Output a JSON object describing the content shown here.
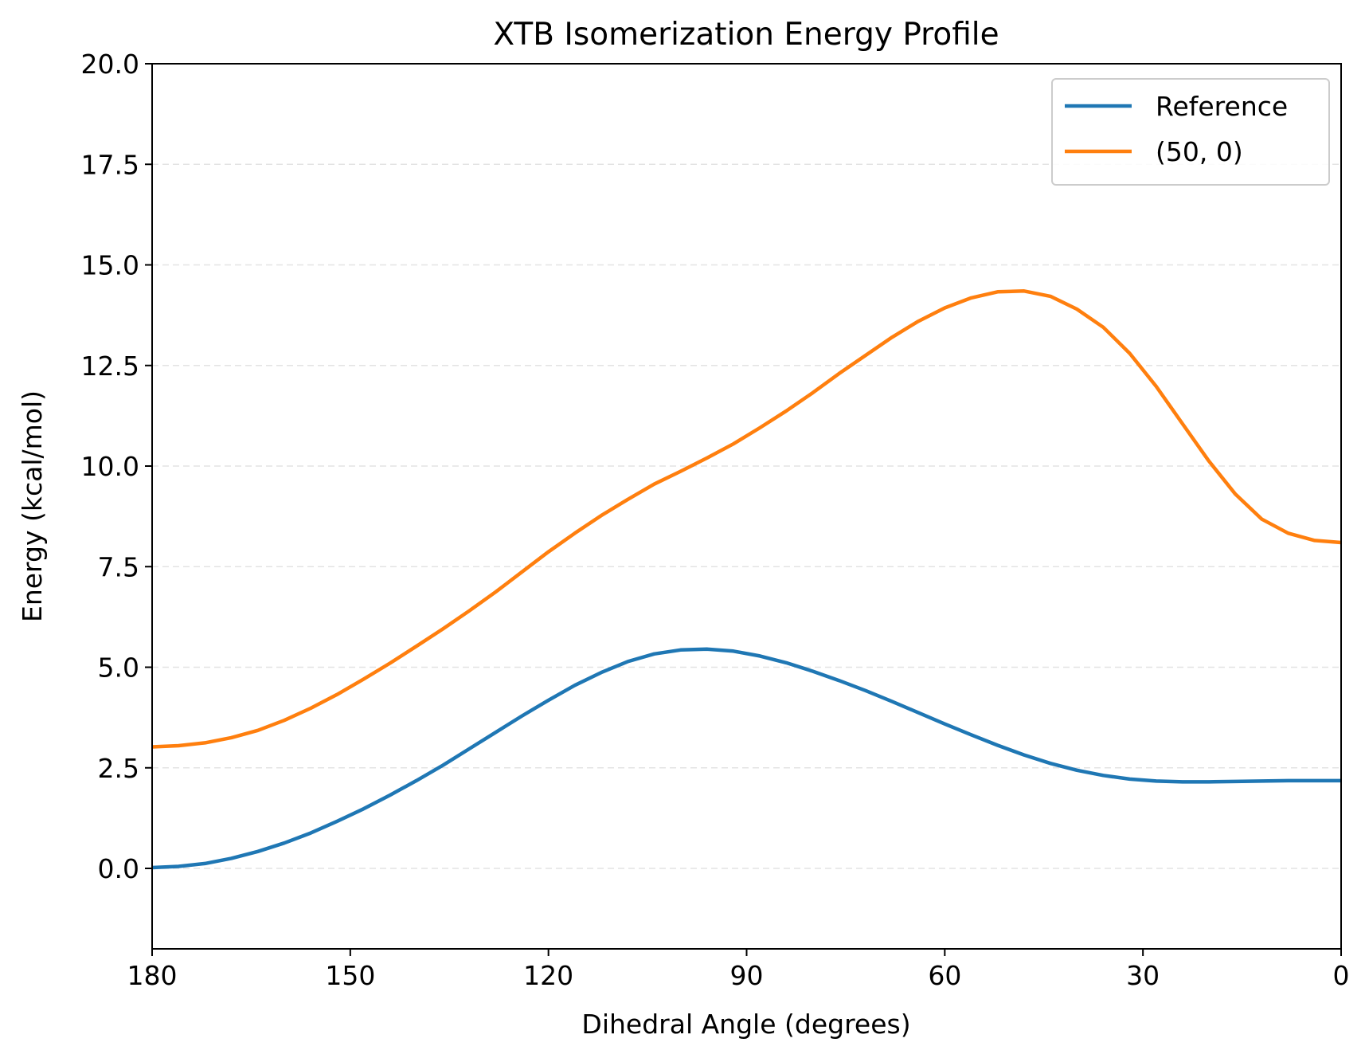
{
  "chart_data": {
    "type": "line",
    "title": "XTB Isomerization Energy Profile",
    "xlabel": "Dihedral Angle (degrees)",
    "ylabel": "Energy (kcal/mol)",
    "xlim": [
      180,
      0
    ],
    "ylim": [
      -2.0,
      20.0
    ],
    "x_ticks": [
      180,
      150,
      120,
      90,
      60,
      30,
      0
    ],
    "x_tick_labels": [
      "180",
      "150",
      "120",
      "90",
      "60",
      "30",
      "0"
    ],
    "y_ticks": [
      0.0,
      2.5,
      5.0,
      7.5,
      10.0,
      12.5,
      15.0,
      17.5,
      20.0
    ],
    "y_tick_labels": [
      "0.0",
      "2.5",
      "5.0",
      "7.5",
      "10.0",
      "12.5",
      "15.0",
      "17.5",
      "20.0"
    ],
    "grid": "horizontal dashed",
    "legend_position": "top-right",
    "x": [
      180,
      176,
      172,
      168,
      164,
      160,
      156,
      152,
      148,
      144,
      140,
      136,
      132,
      128,
      124,
      120,
      116,
      112,
      108,
      104,
      100,
      96,
      92,
      88,
      84,
      80,
      76,
      72,
      68,
      64,
      60,
      56,
      52,
      48,
      44,
      40,
      36,
      32,
      28,
      24,
      20,
      16,
      12,
      8,
      4,
      0
    ],
    "series": [
      {
        "name": "Reference",
        "color": "#1f77b4",
        "values": [
          0.02,
          0.05,
          0.12,
          0.25,
          0.42,
          0.63,
          0.88,
          1.17,
          1.48,
          1.82,
          2.18,
          2.56,
          2.97,
          3.38,
          3.79,
          4.18,
          4.55,
          4.87,
          5.14,
          5.33,
          5.43,
          5.45,
          5.4,
          5.28,
          5.11,
          4.9,
          4.67,
          4.42,
          4.15,
          3.87,
          3.59,
          3.32,
          3.06,
          2.82,
          2.61,
          2.44,
          2.31,
          2.22,
          2.17,
          2.15,
          2.15,
          2.16,
          2.17,
          2.18,
          2.18,
          2.18
        ]
      },
      {
        "name": "(50, 0)",
        "color": "#ff7f0e",
        "values": [
          3.02,
          3.05,
          3.12,
          3.25,
          3.43,
          3.68,
          3.98,
          4.32,
          4.7,
          5.1,
          5.52,
          5.95,
          6.4,
          6.87,
          7.37,
          7.87,
          8.33,
          8.77,
          9.17,
          9.55,
          9.87,
          10.2,
          10.55,
          10.95,
          11.37,
          11.82,
          12.3,
          12.75,
          13.2,
          13.6,
          13.93,
          14.18,
          14.33,
          14.35,
          14.22,
          13.9,
          13.45,
          12.8,
          11.98,
          11.05,
          10.12,
          9.3,
          8.68,
          8.33,
          8.15,
          8.1
        ]
      }
    ]
  }
}
